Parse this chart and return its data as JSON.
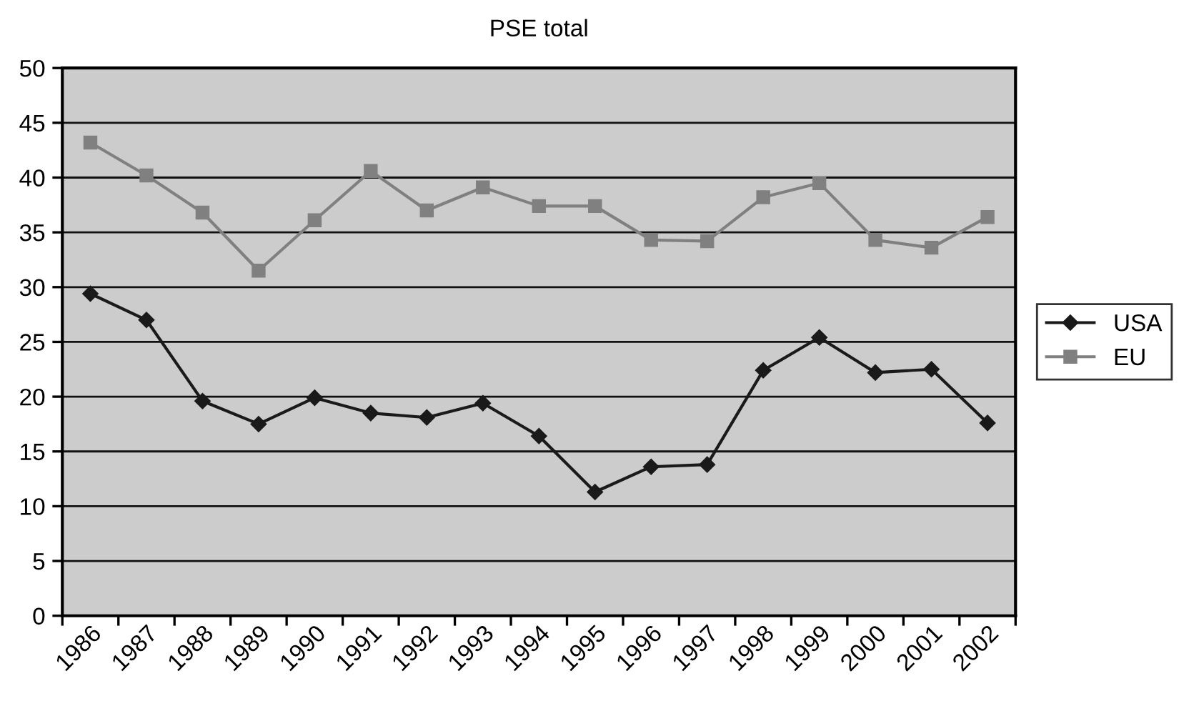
{
  "chart_data": {
    "type": "line",
    "title": "PSE total",
    "categories": [
      "1986",
      "1987",
      "1988",
      "1989",
      "1990",
      "1991",
      "1992",
      "1993",
      "1994",
      "1995",
      "1996",
      "1997",
      "1998",
      "1999",
      "2000",
      "2001",
      "2002"
    ],
    "series": [
      {
        "name": "USA",
        "color": "#1a1a1a",
        "marker": "diamond",
        "values": [
          29.4,
          27.0,
          19.6,
          17.5,
          19.9,
          18.5,
          18.1,
          19.4,
          16.4,
          11.3,
          13.6,
          13.8,
          22.4,
          25.4,
          22.2,
          22.5,
          17.6
        ]
      },
      {
        "name": "EU",
        "color": "#808080",
        "marker": "square",
        "values": [
          43.2,
          40.2,
          36.8,
          31.5,
          36.1,
          40.6,
          37.0,
          39.1,
          37.4,
          37.4,
          34.3,
          34.2,
          38.2,
          39.5,
          34.3,
          33.6,
          36.4
        ]
      }
    ],
    "ylim": [
      0,
      50
    ],
    "yticks": [
      0,
      5,
      10,
      15,
      20,
      25,
      30,
      35,
      40,
      45,
      50
    ],
    "grid": "y",
    "legend": "right",
    "line_style": "solid"
  }
}
